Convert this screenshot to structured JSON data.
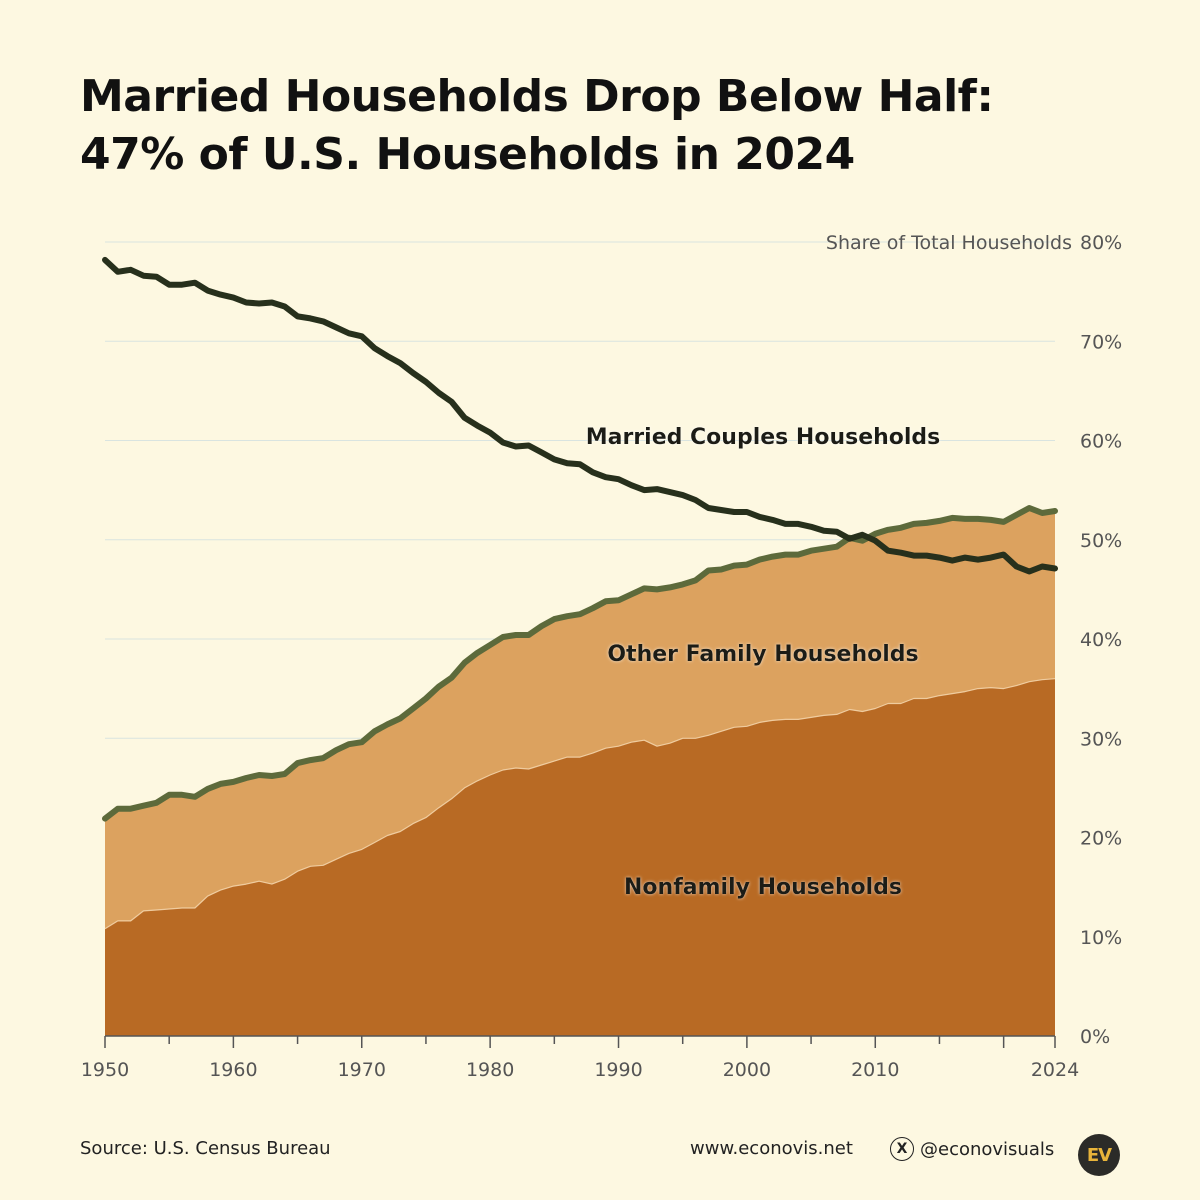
{
  "title": {
    "line1": "Married Households Drop Below Half:",
    "line2": "47% of U.S. Households in 2024"
  },
  "footer": {
    "source": "Source: U.S. Census Bureau",
    "website": "www.econovis.net",
    "handle": "@econovisuals",
    "x_icon": "x-logo-icon",
    "logo_text": "EV"
  },
  "colors": {
    "background": "#fdf8e1",
    "nonfamily": "#b86a24",
    "other_family": "#dca25f",
    "married_line": "#27301c",
    "total_line": "#5d6a3b",
    "grid": "#d9e4e0",
    "axis_text": "#555555"
  },
  "chart_data": {
    "type": "area",
    "title": "Married Households Drop Below Half: 47% of U.S. Households in 2024",
    "ylabel": "Share of Total Households",
    "ylim": [
      0,
      80
    ],
    "xlim": [
      1950,
      2024
    ],
    "x_ticks": [
      1950,
      1960,
      1970,
      1980,
      1990,
      2000,
      2010,
      2024
    ],
    "y_ticks": [
      "0%",
      "10%",
      "20%",
      "30%",
      "40%",
      "50%",
      "60%",
      "70%",
      "80%"
    ],
    "grid": true,
    "legend": "inline labels",
    "x": [
      1950,
      1951,
      1952,
      1953,
      1954,
      1955,
      1956,
      1957,
      1958,
      1959,
      1960,
      1961,
      1962,
      1963,
      1964,
      1965,
      1966,
      1967,
      1968,
      1969,
      1970,
      1971,
      1972,
      1973,
      1974,
      1975,
      1976,
      1977,
      1978,
      1979,
      1980,
      1981,
      1982,
      1983,
      1984,
      1985,
      1986,
      1987,
      1988,
      1989,
      1990,
      1991,
      1992,
      1993,
      1994,
      1995,
      1996,
      1997,
      1998,
      1999,
      2000,
      2001,
      2002,
      2003,
      2004,
      2005,
      2006,
      2007,
      2008,
      2009,
      2010,
      2011,
      2012,
      2013,
      2014,
      2015,
      2016,
      2017,
      2018,
      2019,
      2020,
      2021,
      2022,
      2023,
      2024
    ],
    "series": [
      {
        "name": "Nonfamily Households",
        "kind": "stacked_area",
        "values": [
          10.8,
          11.6,
          11.6,
          12.6,
          12.7,
          12.8,
          12.9,
          12.9,
          14.1,
          14.7,
          15.1,
          15.3,
          15.6,
          15.3,
          15.8,
          16.6,
          17.1,
          17.2,
          17.8,
          18.4,
          18.8,
          19.5,
          20.2,
          20.6,
          21.4,
          22.0,
          23.0,
          23.9,
          25.0,
          25.7,
          26.3,
          26.8,
          27.0,
          26.9,
          27.3,
          27.7,
          28.1,
          28.1,
          28.5,
          29.0,
          29.2,
          29.6,
          29.8,
          29.2,
          29.5,
          30.0,
          30.0,
          30.3,
          30.7,
          31.1,
          31.2,
          31.6,
          31.8,
          31.9,
          31.9,
          32.1,
          32.3,
          32.4,
          32.9,
          32.7,
          33.0,
          33.5,
          33.5,
          34.0,
          34.0,
          34.3,
          34.5,
          34.7,
          35.0,
          35.1,
          35.0,
          35.3,
          35.7,
          35.9,
          36.0
        ]
      },
      {
        "name": "Other Family Households",
        "kind": "stacked_area",
        "values": [
          11.1,
          11.3,
          11.3,
          10.6,
          10.8,
          11.5,
          11.4,
          11.2,
          10.8,
          10.7,
          10.5,
          10.7,
          10.7,
          10.9,
          10.6,
          10.9,
          10.7,
          10.8,
          11.0,
          11.0,
          10.8,
          11.2,
          11.2,
          11.4,
          11.6,
          12.0,
          12.2,
          12.2,
          12.6,
          12.9,
          13.1,
          13.4,
          13.4,
          13.5,
          14.0,
          14.3,
          14.2,
          14.4,
          14.6,
          14.8,
          14.7,
          14.9,
          15.3,
          15.8,
          15.7,
          15.5,
          15.9,
          16.6,
          16.3,
          16.3,
          16.3,
          16.4,
          16.5,
          16.6,
          16.6,
          16.8,
          16.8,
          16.9,
          17.3,
          17.2,
          17.6,
          17.5,
          17.7,
          17.6,
          17.7,
          17.6,
          17.7,
          17.4,
          17.1,
          16.9,
          16.8,
          17.2,
          17.5,
          16.8,
          16.9
        ]
      },
      {
        "name": "Married Couples Households",
        "kind": "line",
        "values": [
          78.2,
          77.0,
          77.2,
          76.6,
          76.5,
          75.7,
          75.7,
          75.9,
          75.1,
          74.7,
          74.4,
          73.9,
          73.8,
          73.9,
          73.5,
          72.5,
          72.3,
          72.0,
          71.4,
          70.8,
          70.5,
          69.3,
          68.5,
          67.8,
          66.8,
          65.9,
          64.8,
          63.9,
          62.3,
          61.5,
          60.8,
          59.8,
          59.4,
          59.5,
          58.8,
          58.1,
          57.7,
          57.6,
          56.8,
          56.3,
          56.1,
          55.5,
          55.0,
          55.1,
          54.8,
          54.5,
          54.0,
          53.2,
          53.0,
          52.8,
          52.8,
          52.3,
          52.0,
          51.6,
          51.6,
          51.3,
          50.9,
          50.8,
          50.1,
          50.5,
          49.9,
          48.9,
          48.7,
          48.4,
          48.4,
          48.2,
          47.9,
          48.2,
          48.0,
          48.2,
          48.5,
          47.3,
          46.8,
          47.3,
          47.1
        ]
      }
    ],
    "labels": {
      "married": "Married Couples Households",
      "other": "Other Family Households",
      "nonfamily": "Nonfamily Households"
    }
  }
}
